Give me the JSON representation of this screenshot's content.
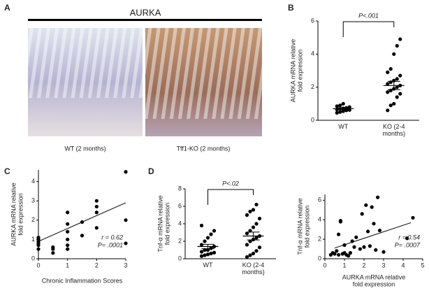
{
  "figure": {
    "panel_labels": [
      "A",
      "B",
      "C",
      "D"
    ],
    "image_panel": {
      "title": "AURKA",
      "captions": [
        "WT (2 months)",
        "Tff1-KO (2 months)"
      ]
    }
  },
  "chart_data": [
    {
      "type": "strip",
      "ylabel": [
        "AURKA mRNA relative",
        "fold expression"
      ],
      "annotation": "P<.001",
      "categories": [
        "WT",
        "KO (2-4 months)"
      ],
      "values": [
        [
          0.45,
          0.5,
          0.55,
          0.6,
          0.62,
          0.65,
          0.7,
          0.72,
          0.75,
          0.8,
          0.85,
          0.9,
          1.0
        ],
        [
          0.6,
          0.9,
          1.0,
          1.4,
          1.6,
          1.7,
          1.8,
          1.9,
          2.0,
          2.1,
          2.2,
          2.3,
          2.4,
          2.5,
          2.7,
          2.9,
          3.1,
          4.0,
          4.5,
          4.9
        ]
      ],
      "means": [
        0.7,
        2.1
      ],
      "sems": [
        0.06,
        0.25
      ],
      "color": "#000000",
      "ylim": [
        0,
        6
      ],
      "yticks": [
        0,
        2,
        4,
        6
      ]
    },
    {
      "type": "scatter",
      "xlabel": "Chronic Inflammation Scores",
      "ylabel": [
        "AURKA mRNA relative",
        "fold expression"
      ],
      "annotations": [
        "r = 0.62",
        "P= .0001"
      ],
      "x": [
        0,
        0,
        0,
        0,
        0,
        0,
        0.5,
        0.5,
        0.5,
        1,
        1,
        1,
        1,
        1,
        1,
        1.5,
        1.5,
        2,
        2,
        2,
        2,
        3,
        3,
        3
      ],
      "values": [
        0.5,
        0.8,
        0.7,
        0.9,
        1.1,
        1.0,
        0.3,
        0.5,
        0.6,
        0.5,
        0.7,
        1.0,
        1.4,
        1.8,
        2.4,
        1.2,
        1.9,
        1.6,
        2.4,
        2.7,
        3.0,
        4.5,
        2.0,
        0.8
      ],
      "fit_line": {
        "x": [
          0,
          3
        ],
        "values": [
          0.9,
          2.9
        ]
      },
      "color": "#000000",
      "xlim": [
        0,
        3
      ],
      "xticks": [
        0,
        1,
        2,
        3
      ],
      "ylim": [
        0,
        4.6
      ],
      "yticks": [
        0,
        1,
        2,
        3,
        4
      ]
    },
    {
      "type": "strip",
      "ylabel": [
        "Tnf-α mRNA relative",
        "fold expression"
      ],
      "annotation": "P<.02",
      "categories": [
        "WT",
        "KO (2-4 months)"
      ],
      "values": [
        [
          0.3,
          0.4,
          0.5,
          0.6,
          0.7,
          0.8,
          1.0,
          1.0,
          1.2,
          1.4,
          1.6,
          2.0,
          2.4,
          2.8,
          3.2,
          3.8
        ],
        [
          0.2,
          0.4,
          0.6,
          0.9,
          1.3,
          1.6,
          2.0,
          2.2,
          2.4,
          2.6,
          2.9,
          3.2,
          3.6,
          4.0,
          4.6,
          5.0,
          5.4,
          5.6,
          6.2
        ]
      ],
      "means": [
        1.4,
        2.6
      ],
      "sems": [
        0.25,
        0.45
      ],
      "color": "#000000",
      "ylim": [
        0,
        8
      ],
      "yticks": [
        0,
        2,
        4,
        6,
        8
      ]
    },
    {
      "type": "scatter",
      "xlabel": [
        "AURKA mRNA relative",
        "fold expression"
      ],
      "ylabel": [
        "Tnf-α mRNA relative",
        "fold expression"
      ],
      "annotations": [
        "r = 0.54",
        "P= .0007"
      ],
      "x": [
        0.3,
        0.4,
        0.5,
        0.6,
        0.7,
        0.7,
        0.8,
        0.8,
        0.9,
        1.0,
        1.0,
        1.1,
        1.2,
        1.3,
        1.4,
        1.5,
        1.6,
        1.8,
        1.9,
        2.0,
        2.1,
        2.2,
        2.3,
        2.4,
        2.5,
        2.6,
        2.7,
        2.8,
        3.0,
        4.2,
        4.5
      ],
      "values": [
        0.4,
        0.6,
        0.5,
        0.8,
        0.4,
        2.5,
        3.8,
        3.9,
        0.5,
        0.6,
        1.4,
        0.4,
        0.3,
        0.6,
        1.8,
        1.2,
        2.2,
        1.0,
        4.6,
        1.2,
        5.5,
        2.8,
        1.3,
        5.3,
        3.6,
        0.9,
        6.3,
        2.9,
        0.7,
        2.1,
        4.2
      ],
      "fit_line": {
        "x": [
          0.5,
          4.4
        ],
        "values": [
          1.1,
          3.7
        ]
      },
      "color": "#000000",
      "xlim": [
        0,
        5
      ],
      "xticks": [
        0,
        1,
        2,
        3,
        4,
        5
      ],
      "ylim": [
        0,
        6.6
      ],
      "yticks": [
        0,
        2,
        4,
        6
      ]
    }
  ]
}
